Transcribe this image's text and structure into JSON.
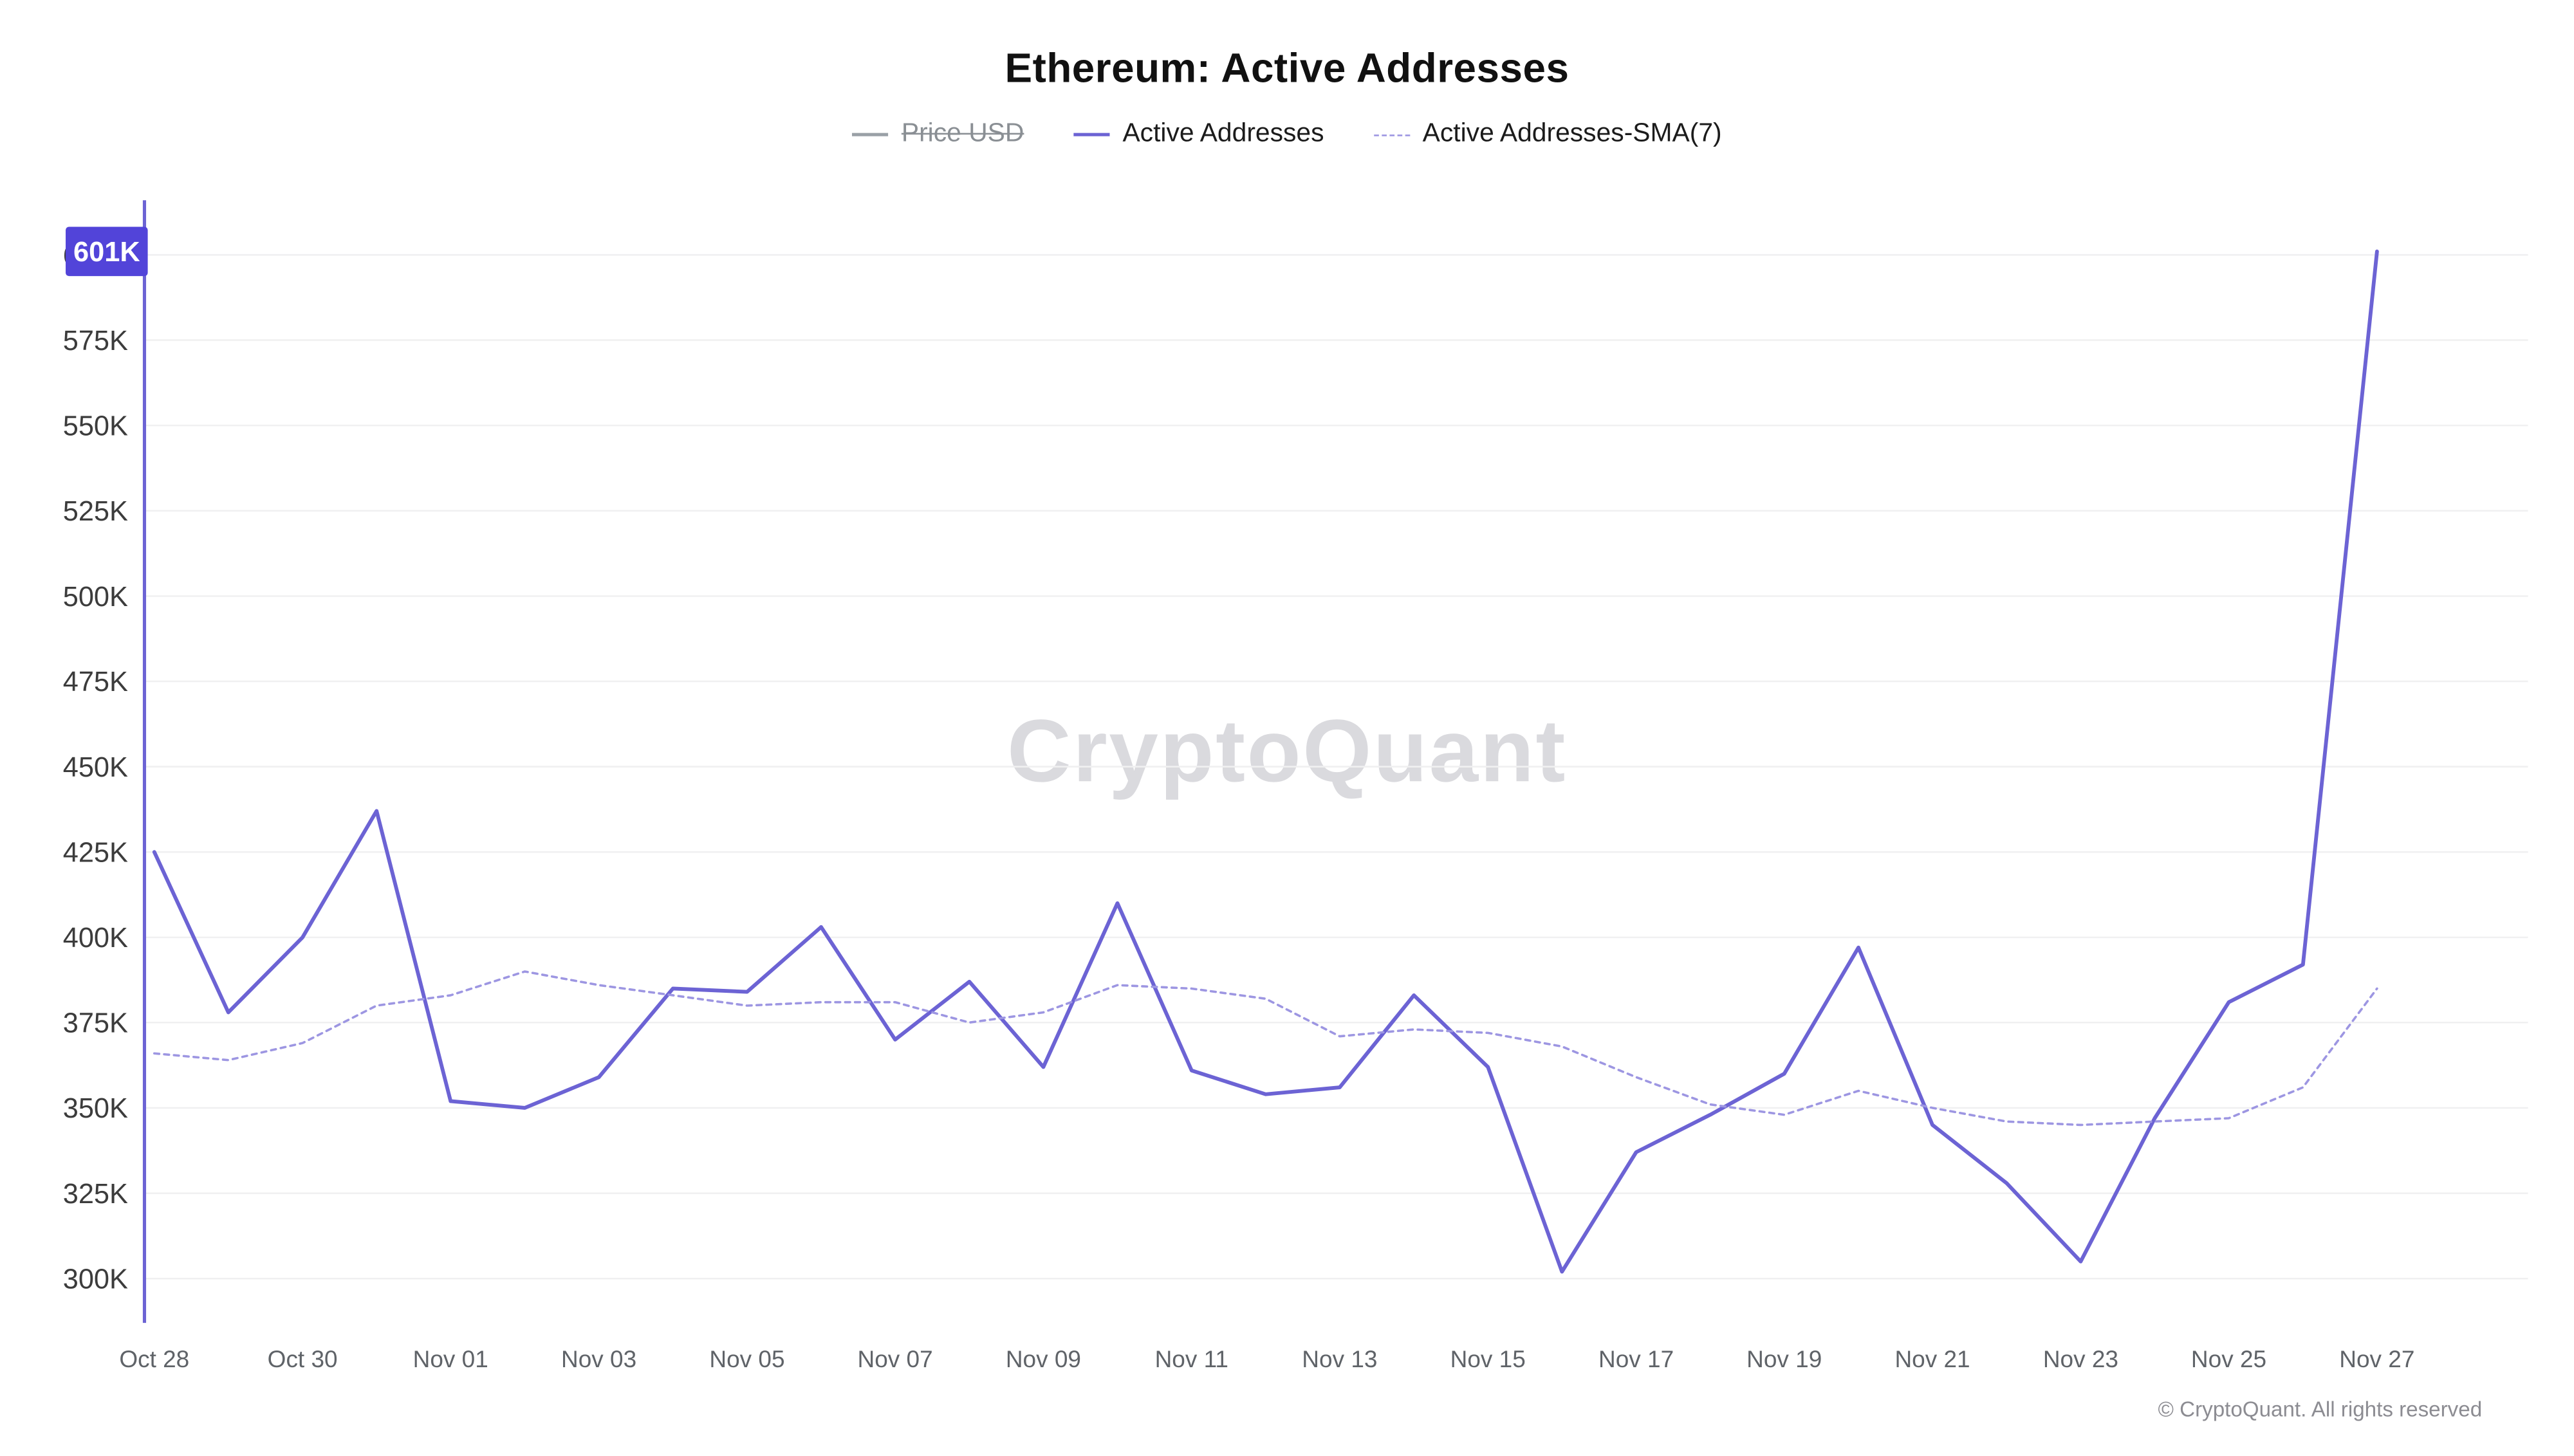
{
  "header": {
    "title": "Ethereum: Active Addresses"
  },
  "legend": [
    {
      "label": "Price USD",
      "state": "disabled",
      "swatch": "solid-gray"
    },
    {
      "label": "Active Addresses",
      "state": "active",
      "swatch": "solid-purple"
    },
    {
      "label": "Active Addresses-SMA(7)",
      "state": "active",
      "swatch": "dashed-purple"
    }
  ],
  "chart": {
    "watermark": "CryptoQuant"
  },
  "footer": {
    "copyright": "© CryptoQuant. All rights reserved"
  },
  "colors": {
    "line": "#6c63d4",
    "sma": "#9d96e2",
    "badge": "#5244d9",
    "grid": "#f0f0f1",
    "axis_text": "#3c3c3c",
    "x_text": "#5f6368",
    "disabled": "#9aa0a6",
    "watermark": "#dadade"
  },
  "chart_data": {
    "type": "line",
    "title": "Ethereum: Active Addresses",
    "legend_position": "top",
    "grid": "horizontal",
    "x": [
      "Oct 28",
      "Oct 29",
      "Oct 30",
      "Oct 31",
      "Nov 01",
      "Nov 02",
      "Nov 03",
      "Nov 04",
      "Nov 05",
      "Nov 06",
      "Nov 07",
      "Nov 08",
      "Nov 09",
      "Nov 10",
      "Nov 11",
      "Nov 12",
      "Nov 13",
      "Nov 14",
      "Nov 15",
      "Nov 16",
      "Nov 17",
      "Nov 18",
      "Nov 19",
      "Nov 20",
      "Nov 21",
      "Nov 22",
      "Nov 23",
      "Nov 24",
      "Nov 25",
      "Nov 26",
      "Nov 27"
    ],
    "series": [
      {
        "name": "Active Addresses",
        "style": "solid",
        "values": [
          425000,
          378000,
          400000,
          437000,
          352000,
          350000,
          359000,
          385000,
          384000,
          403000,
          370000,
          387000,
          362000,
          410000,
          361000,
          354000,
          356000,
          383000,
          362000,
          302000,
          337000,
          348000,
          360000,
          397000,
          345000,
          328000,
          305000,
          347000,
          381000,
          392000,
          601000
        ]
      },
      {
        "name": "Active Addresses-SMA(7)",
        "style": "dashed",
        "values": [
          366000,
          364000,
          369000,
          380000,
          383000,
          390000,
          386000,
          383000,
          380000,
          381000,
          381000,
          375000,
          378000,
          386000,
          385000,
          382000,
          371000,
          373000,
          372000,
          368000,
          359000,
          351000,
          348000,
          355000,
          350000,
          346000,
          345000,
          346000,
          347000,
          356000,
          385000
        ]
      }
    ],
    "ylim": [
      287000,
      616000
    ],
    "yticks": [
      {
        "value": 300000,
        "label": "300K"
      },
      {
        "value": 325000,
        "label": "325K"
      },
      {
        "value": 350000,
        "label": "350K"
      },
      {
        "value": 375000,
        "label": "375K"
      },
      {
        "value": 400000,
        "label": "400K"
      },
      {
        "value": 425000,
        "label": "425K"
      },
      {
        "value": 450000,
        "label": "450K"
      },
      {
        "value": 475000,
        "label": "475K"
      },
      {
        "value": 500000,
        "label": "500K"
      },
      {
        "value": 525000,
        "label": "525K"
      },
      {
        "value": 550000,
        "label": "550K"
      },
      {
        "value": 575000,
        "label": "575K"
      },
      {
        "value": 600000,
        "label": "600K"
      }
    ],
    "xtick_indices": [
      0,
      2,
      4,
      6,
      8,
      10,
      12,
      14,
      16,
      18,
      20,
      22,
      24,
      26,
      28,
      30
    ],
    "last_point_label": {
      "series": "Active Addresses",
      "label": "601K",
      "value": 601000
    }
  }
}
